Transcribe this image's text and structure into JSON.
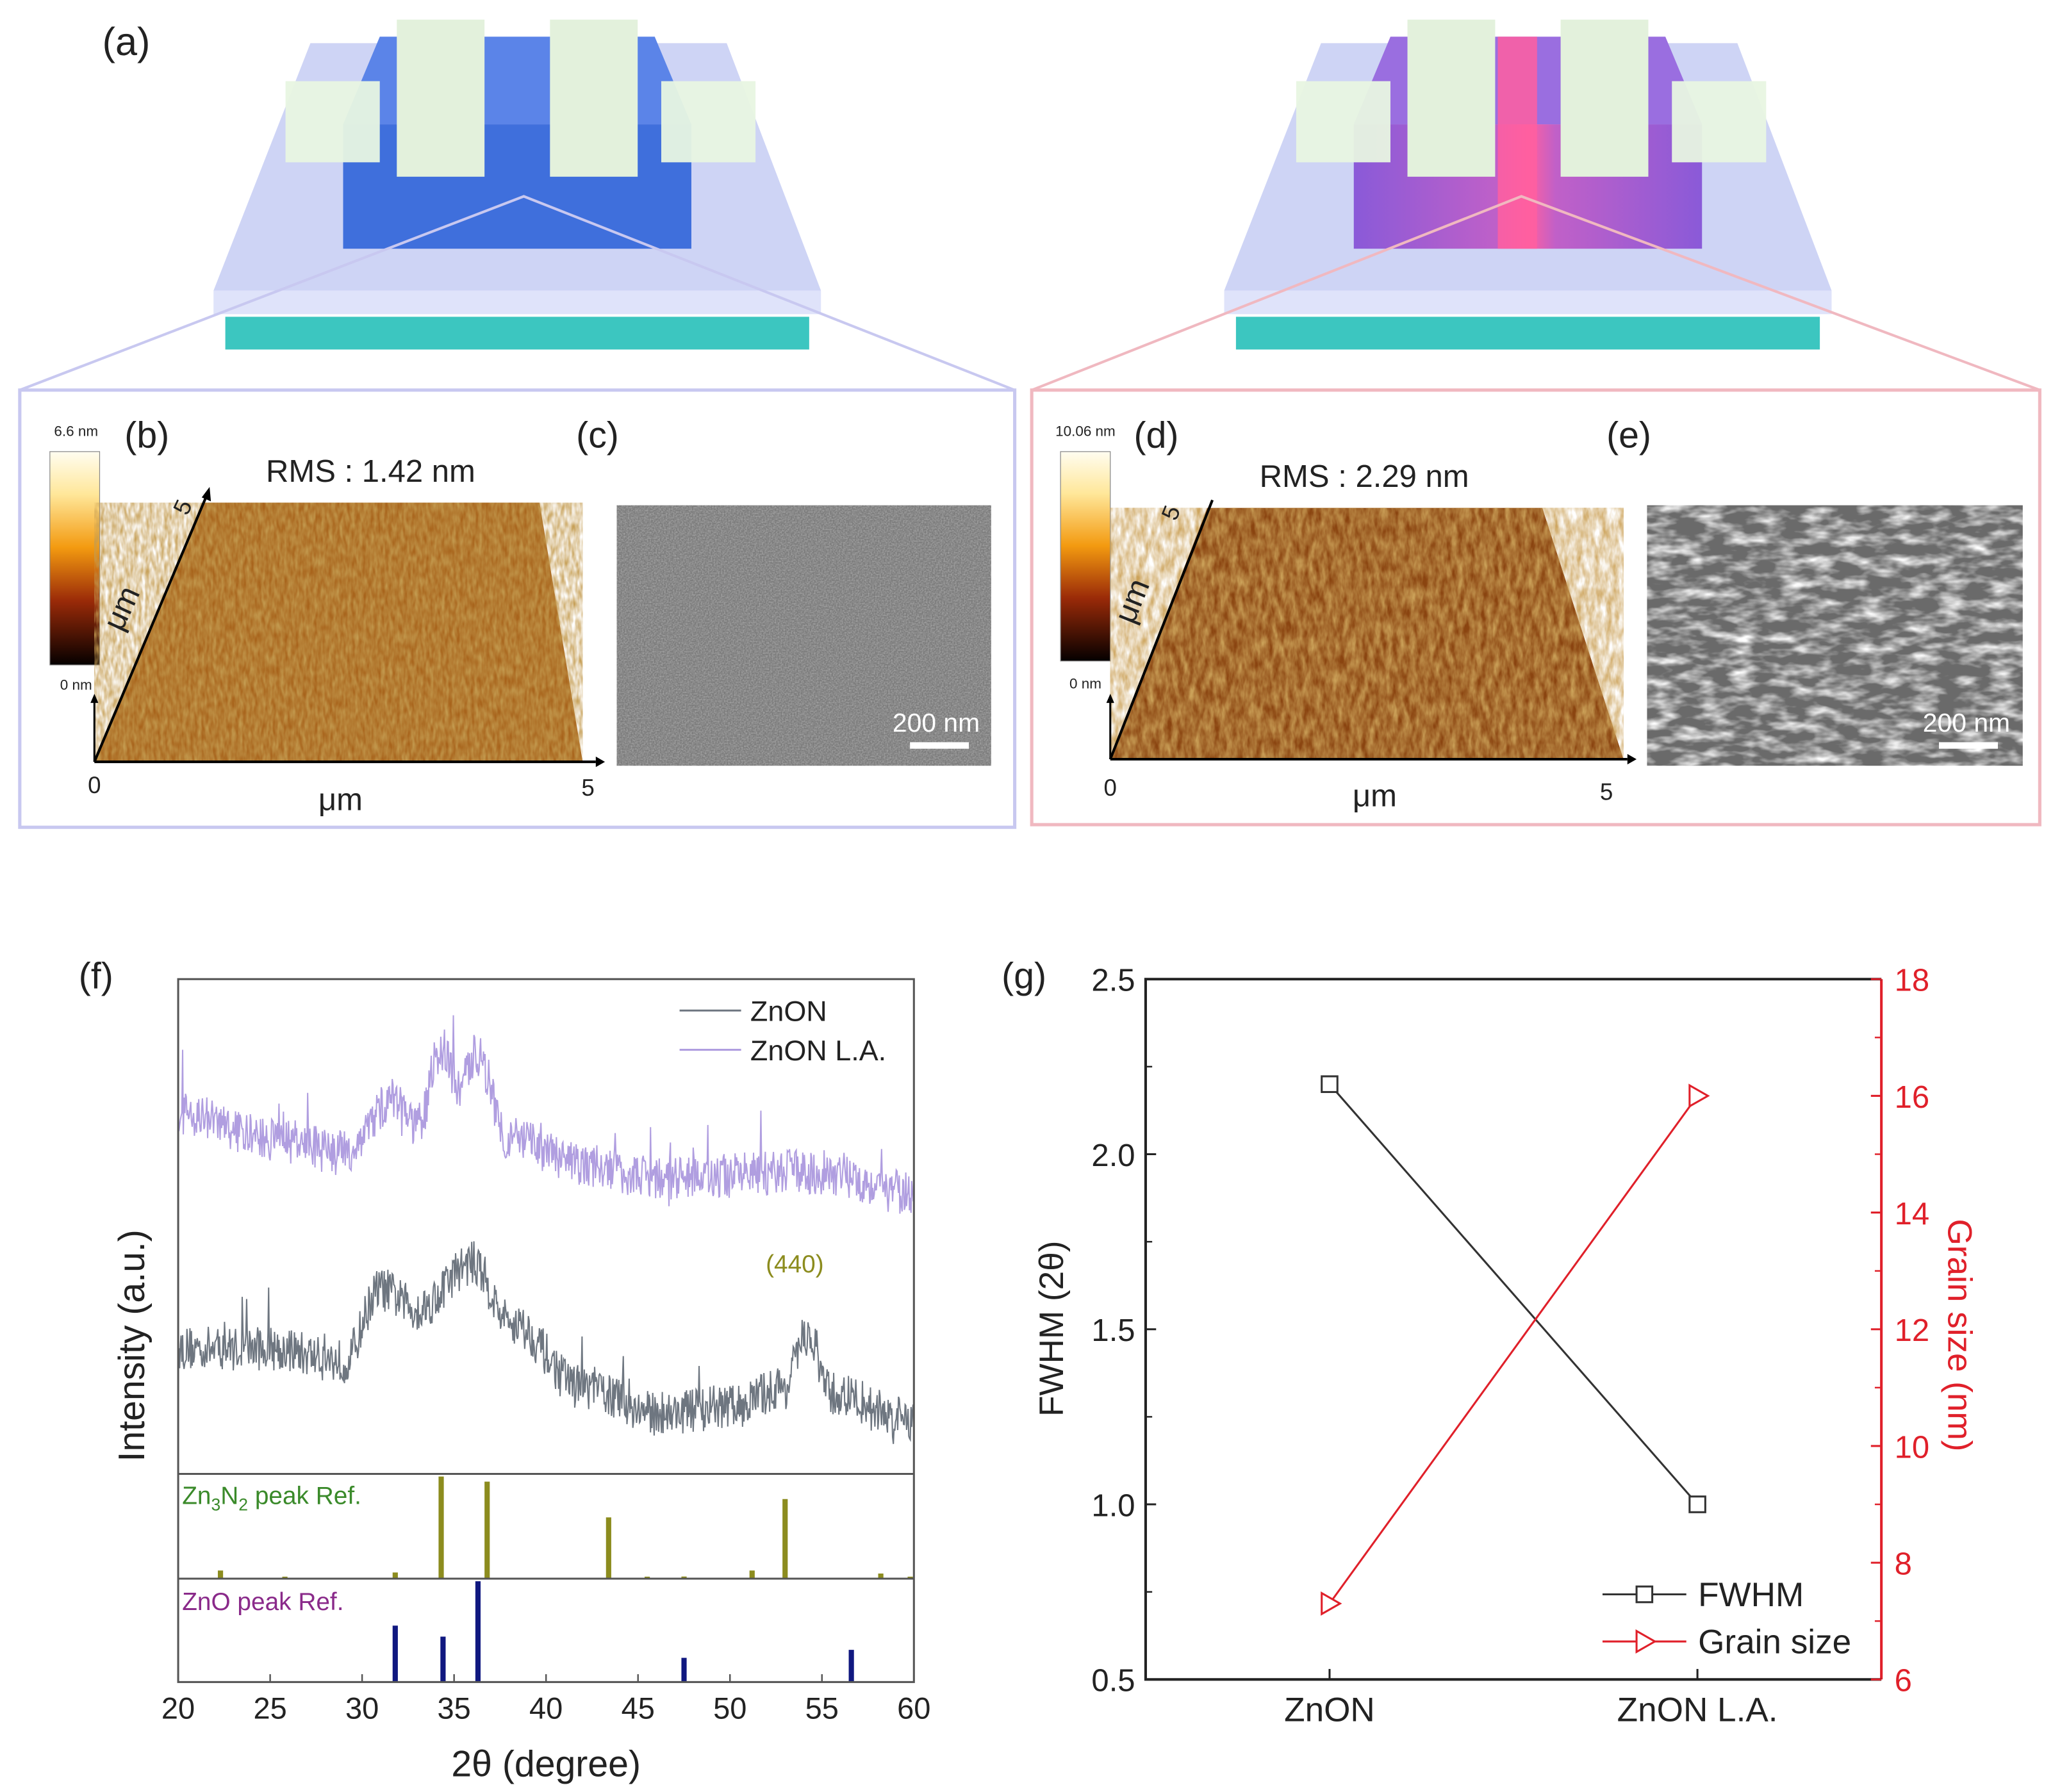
{
  "panels": {
    "a": "(a)",
    "b": "(b)",
    "c": "(c)",
    "d": "(d)",
    "e": "(e)",
    "f": "(f)",
    "g": "(g)"
  },
  "afm_left": {
    "colorbar_max": "6.6 nm",
    "colorbar_min": "0 nm",
    "rms": "RMS : 1.42 nm",
    "axis_origin": "0",
    "axis_x_max": "5",
    "axis_y_max": "5",
    "axis_x_unit": "μm",
    "axis_y_unit": "μm"
  },
  "sem_left": {
    "scale_label": "200 nm"
  },
  "afm_right": {
    "colorbar_max": "10.06 nm",
    "colorbar_min": "0 nm",
    "rms": "RMS : 2.29 nm",
    "axis_origin": "0",
    "axis_x_max": "5",
    "axis_y_max": "5",
    "axis_x_unit": "μm",
    "axis_y_unit": "μm"
  },
  "sem_right": {
    "scale_label": "200 nm"
  },
  "colors": {
    "channel_blue": "#3f6fdc",
    "channel_purple": "#8a5ad8",
    "laser_pink": "#ff5fa0",
    "substrate_teal": "#3cc6c0",
    "xrd_zon": "#6e7680",
    "xrd_zon_la": "#b09ee0",
    "zn3n2_ref": "#8c8c1e",
    "zno_ref": "#101880",
    "grain_red": "#e0202a"
  },
  "chart_data": [
    {
      "type": "line",
      "title": "",
      "xlabel": "2θ (degree)",
      "ylabel": "Intensity (a.u.)",
      "xlim": [
        20,
        60
      ],
      "xticks": [
        "20",
        "25",
        "30",
        "35",
        "40",
        "45",
        "50",
        "55",
        "60"
      ],
      "legend": {
        "placement": "top-right",
        "entries": [
          "ZnON",
          "ZnON L.A."
        ]
      },
      "annotation": "(440)",
      "series": [
        {
          "name": "ZnON",
          "points": [
            [
              20,
              25.4
            ],
            [
              25,
              25.4
            ],
            [
              29,
              22.8
            ],
            [
              31,
              37.3
            ],
            [
              33,
              33.3
            ],
            [
              36,
              42.6
            ],
            [
              38,
              30.7
            ],
            [
              42,
              17.5
            ],
            [
              46,
              12.2
            ],
            [
              50,
              13.5
            ],
            [
              53,
              17.5
            ],
            [
              54.2,
              28
            ],
            [
              55.5,
              16.1
            ],
            [
              60,
              10.8
            ]
          ]
        },
        {
          "name": "ZnON L.A.",
          "points": [
            [
              20,
              73
            ],
            [
              25,
              67.7
            ],
            [
              29,
              65
            ],
            [
              31.8,
              75.7
            ],
            [
              33,
              70
            ],
            [
              34.3,
              86
            ],
            [
              35.3,
              78
            ],
            [
              36.2,
              85
            ],
            [
              38,
              67.7
            ],
            [
              42,
              62.4
            ],
            [
              46,
              59.8
            ],
            [
              55,
              61
            ],
            [
              60,
              56.6
            ]
          ]
        }
      ],
      "references": [
        {
          "name": "Zn3N2 peak Ref.",
          "label_main": "Zn",
          "label_sub1": "3",
          "label_mid": "N",
          "label_sub2": "2",
          "label_tail": " peak Ref.",
          "peaks": [
            [
              22.3,
              0.08
            ],
            [
              25.8,
              0.01
            ],
            [
              31.8,
              0.06
            ],
            [
              34.3,
              1.0
            ],
            [
              36.8,
              0.95
            ],
            [
              43.4,
              0.6
            ],
            [
              45.5,
              0.01
            ],
            [
              47.5,
              0.02
            ],
            [
              51.2,
              0.08
            ],
            [
              53.0,
              0.78
            ],
            [
              58.2,
              0.05
            ],
            [
              59.8,
              0.01
            ]
          ]
        },
        {
          "name": "ZnO peak Ref.",
          "peaks": [
            [
              31.8,
              0.56
            ],
            [
              34.4,
              0.45
            ],
            [
              36.3,
              1.0
            ],
            [
              47.5,
              0.24
            ],
            [
              56.6,
              0.32
            ]
          ]
        }
      ]
    },
    {
      "type": "line",
      "categories": [
        "ZnON",
        "ZnON L.A."
      ],
      "ylabel": "FWHM (2θ)",
      "ylabel_right": "Grain size (nm)",
      "ylim": [
        0.5,
        2.5
      ],
      "ylim_right": [
        6,
        18
      ],
      "yticks": [
        "0.5",
        "1.0",
        "1.5",
        "2.0",
        "2.5"
      ],
      "yticks_right": [
        "6",
        "8",
        "10",
        "12",
        "14",
        "16",
        "18"
      ],
      "legend": {
        "placement": "bottom-right",
        "entries": [
          "FWHM",
          "Grain size"
        ]
      },
      "series": [
        {
          "name": "FWHM",
          "axis": "left",
          "values": [
            2.2,
            1.0
          ]
        },
        {
          "name": "Grain size",
          "axis": "right",
          "values": [
            7.3,
            16.0
          ]
        }
      ]
    }
  ]
}
